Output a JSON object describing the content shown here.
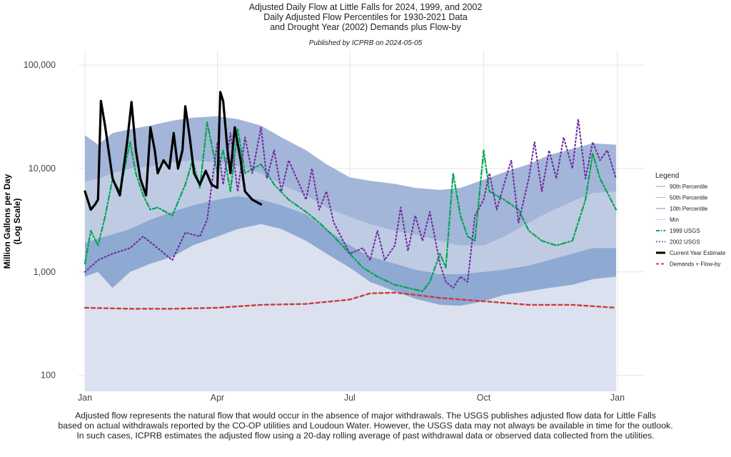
{
  "titles": {
    "line1": "Adjusted Daily Flow at Little Falls for 2024, 1999, and 2002",
    "line2": "Daily Adjusted Flow Percentiles for 1930-2021 Data",
    "line3": "and Drought Year (2002) Demands plus Flow-by",
    "subtitle": "Published by ICPRB on 2024-05-05"
  },
  "caption": {
    "line1": "Adjusted flow represents the natural flow that would occur in the absence of major withdrawals. The USGS publishes adjusted flow data for Little Falls",
    "line2": "based on actual withdrawals reported by the CO-OP utilities and Loudoun Water. However, the USGS data may not always be available in time for the outlook.",
    "line3": "In such cases, ICPRB estimates the adjusted flow using a 20-day rolling average of past withdrawal data or observed data collected from the utilities."
  },
  "colors": {
    "band_high": "#a3b5d8",
    "band_mid": "#bfcbe3",
    "band_low": "#8ea9d2",
    "band_min": "#dbe1ef",
    "series_1999": "#00a651",
    "series_2002": "#7030a0",
    "current": "#000000",
    "demands": "#cc3b3b"
  },
  "chart_data": {
    "type": "area",
    "ylabel_line1": "Million Gallons per Day",
    "ylabel_line2": "(Log Scale)",
    "xlabel": "",
    "y_scale": "log",
    "ylim": [
      70,
      140000
    ],
    "xlim": [
      "2024-01-01",
      "2024-12-31"
    ],
    "grid": true,
    "x_ticks": [
      {
        "date": "2024-01-01",
        "label": "Jan"
      },
      {
        "date": "2024-04-01",
        "label": "Apr"
      },
      {
        "date": "2024-07-01",
        "label": "Jul"
      },
      {
        "date": "2024-10-01",
        "label": "Oct"
      },
      {
        "date": "2025-01-01",
        "label": "Jan"
      }
    ],
    "y_ticks": [
      {
        "value": 100,
        "label": "100"
      },
      {
        "value": 1000,
        "label": "1,000"
      },
      {
        "value": 10000,
        "label": "10,000"
      },
      {
        "value": 100000,
        "label": "100,000"
      }
    ],
    "legend": {
      "title": "Legend",
      "position": "right",
      "items": [
        "90th Percentile",
        "50th Percentile",
        "10th Percentile",
        "Min",
        "1999 USGS",
        "2002 USGS",
        "Current Year Estimate",
        "Demands + Flow-by"
      ]
    },
    "series": [
      {
        "name": "90th Percentile",
        "style": "band",
        "x": [
          "2024-01-01",
          "2024-01-10",
          "2024-01-20",
          "2024-02-01",
          "2024-02-15",
          "2024-03-01",
          "2024-03-15",
          "2024-04-01",
          "2024-04-15",
          "2024-05-01",
          "2024-05-15",
          "2024-06-01",
          "2024-06-15",
          "2024-07-01",
          "2024-07-15",
          "2024-08-01",
          "2024-08-15",
          "2024-09-01",
          "2024-09-15",
          "2024-10-01",
          "2024-10-15",
          "2024-11-01",
          "2024-11-15",
          "2024-12-01",
          "2024-12-15",
          "2024-12-31"
        ],
        "values": [
          21000,
          17000,
          22000,
          24000,
          26000,
          29000,
          31000,
          32000,
          30000,
          26000,
          20000,
          15000,
          11000,
          8200,
          7600,
          7100,
          6500,
          6200,
          6500,
          7800,
          9200,
          11000,
          13500,
          15500,
          17500,
          17000
        ]
      },
      {
        "name": "50th Percentile",
        "style": "band",
        "x": [
          "2024-01-01",
          "2024-01-10",
          "2024-01-20",
          "2024-02-01",
          "2024-02-15",
          "2024-03-01",
          "2024-03-15",
          "2024-04-01",
          "2024-04-15",
          "2024-05-01",
          "2024-05-15",
          "2024-06-01",
          "2024-06-15",
          "2024-07-01",
          "2024-07-15",
          "2024-08-01",
          "2024-08-15",
          "2024-09-01",
          "2024-09-15",
          "2024-10-01",
          "2024-10-15",
          "2024-11-01",
          "2024-11-15",
          "2024-12-01",
          "2024-12-15",
          "2024-12-31"
        ],
        "values": [
          7500,
          8000,
          9000,
          10000,
          10500,
          11500,
          12000,
          11500,
          10500,
          9000,
          7000,
          5500,
          4200,
          3400,
          2900,
          2500,
          2300,
          2000,
          1800,
          1800,
          2200,
          3000,
          3800,
          4800,
          5800,
          6000
        ]
      },
      {
        "name": "10th Percentile",
        "style": "band",
        "x": [
          "2024-01-01",
          "2024-01-10",
          "2024-01-20",
          "2024-02-01",
          "2024-02-15",
          "2024-03-01",
          "2024-03-15",
          "2024-04-01",
          "2024-04-15",
          "2024-05-01",
          "2024-05-15",
          "2024-06-01",
          "2024-06-15",
          "2024-07-01",
          "2024-07-15",
          "2024-08-01",
          "2024-08-15",
          "2024-09-01",
          "2024-09-15",
          "2024-10-01",
          "2024-10-15",
          "2024-11-01",
          "2024-11-15",
          "2024-12-01",
          "2024-12-15",
          "2024-12-31"
        ],
        "values": [
          1900,
          2100,
          2300,
          2600,
          3200,
          3800,
          4400,
          5000,
          5400,
          5000,
          4400,
          3600,
          2600,
          1800,
          1400,
          1200,
          1050,
          950,
          950,
          1000,
          1050,
          1150,
          1300,
          1500,
          1700,
          1700
        ]
      },
      {
        "name": "Min",
        "style": "band",
        "x": [
          "2024-01-01",
          "2024-01-10",
          "2024-01-20",
          "2024-02-01",
          "2024-02-15",
          "2024-03-01",
          "2024-03-15",
          "2024-04-01",
          "2024-04-15",
          "2024-05-01",
          "2024-05-15",
          "2024-06-01",
          "2024-06-15",
          "2024-07-01",
          "2024-07-15",
          "2024-08-01",
          "2024-08-15",
          "2024-09-01",
          "2024-09-15",
          "2024-10-01",
          "2024-10-15",
          "2024-11-01",
          "2024-11-15",
          "2024-12-01",
          "2024-12-15",
          "2024-12-31"
        ],
        "values": [
          900,
          1000,
          700,
          1000,
          1200,
          1400,
          1800,
          2200,
          2600,
          2900,
          2600,
          2000,
          1500,
          1100,
          800,
          650,
          550,
          480,
          470,
          520,
          600,
          650,
          700,
          750,
          850,
          900
        ]
      },
      {
        "name": "1999 USGS",
        "style": "dashdot",
        "x": [
          "2024-01-01",
          "2024-01-05",
          "2024-01-10",
          "2024-01-15",
          "2024-01-20",
          "2024-01-25",
          "2024-02-01",
          "2024-02-05",
          "2024-02-10",
          "2024-02-15",
          "2024-02-20",
          "2024-03-01",
          "2024-03-10",
          "2024-03-15",
          "2024-03-20",
          "2024-03-25",
          "2024-04-01",
          "2024-04-05",
          "2024-04-10",
          "2024-04-15",
          "2024-04-20",
          "2024-05-01",
          "2024-05-10",
          "2024-05-20",
          "2024-06-01",
          "2024-06-10",
          "2024-06-20",
          "2024-07-01",
          "2024-07-10",
          "2024-07-20",
          "2024-08-01",
          "2024-08-10",
          "2024-08-20",
          "2024-08-25",
          "2024-09-01",
          "2024-09-05",
          "2024-09-10",
          "2024-09-15",
          "2024-09-20",
          "2024-09-25",
          "2024-10-01",
          "2024-10-05",
          "2024-10-15",
          "2024-10-25",
          "2024-11-01",
          "2024-11-10",
          "2024-11-20",
          "2024-12-01",
          "2024-12-10",
          "2024-12-15",
          "2024-12-20",
          "2024-12-31"
        ],
        "values": [
          1200,
          2500,
          1800,
          3500,
          8000,
          6000,
          18000,
          9000,
          5500,
          4000,
          4200,
          3500,
          7000,
          12000,
          6500,
          28000,
          9000,
          15000,
          6000,
          24000,
          9000,
          11000,
          7000,
          5000,
          3800,
          3000,
          2200,
          1500,
          1100,
          900,
          750,
          700,
          650,
          800,
          1500,
          1100,
          9000,
          3500,
          2200,
          2000,
          15000,
          6000,
          5000,
          4000,
          2500,
          2000,
          1800,
          2000,
          5000,
          14000,
          8000,
          4000
        ]
      },
      {
        "name": "2002 USGS",
        "style": "dotted",
        "x": [
          "2024-01-01",
          "2024-01-10",
          "2024-01-20",
          "2024-02-01",
          "2024-02-10",
          "2024-02-20",
          "2024-03-01",
          "2024-03-10",
          "2024-03-20",
          "2024-03-25",
          "2024-04-01",
          "2024-04-05",
          "2024-04-10",
          "2024-04-15",
          "2024-04-20",
          "2024-04-25",
          "2024-05-01",
          "2024-05-05",
          "2024-05-10",
          "2024-05-15",
          "2024-05-20",
          "2024-06-01",
          "2024-06-05",
          "2024-06-10",
          "2024-06-15",
          "2024-06-20",
          "2024-07-01",
          "2024-07-10",
          "2024-07-15",
          "2024-07-20",
          "2024-07-25",
          "2024-08-01",
          "2024-08-05",
          "2024-08-10",
          "2024-08-15",
          "2024-08-20",
          "2024-08-25",
          "2024-09-01",
          "2024-09-05",
          "2024-09-10",
          "2024-09-15",
          "2024-09-20",
          "2024-09-25",
          "2024-10-01",
          "2024-10-05",
          "2024-10-10",
          "2024-10-15",
          "2024-10-20",
          "2024-10-25",
          "2024-11-01",
          "2024-11-05",
          "2024-11-10",
          "2024-11-15",
          "2024-11-20",
          "2024-11-25",
          "2024-12-01",
          "2024-12-05",
          "2024-12-10",
          "2024-12-15",
          "2024-12-20",
          "2024-12-25",
          "2024-12-31"
        ],
        "values": [
          1000,
          1300,
          1500,
          1700,
          2200,
          1700,
          1300,
          2400,
          2200,
          3200,
          18000,
          7000,
          22000,
          6000,
          20000,
          9000,
          25000,
          8000,
          15000,
          6000,
          12000,
          5000,
          10000,
          4000,
          6000,
          3000,
          1500,
          1700,
          1300,
          2500,
          1300,
          1800,
          4200,
          1600,
          3500,
          2000,
          3800,
          1200,
          800,
          700,
          900,
          800,
          3500,
          5000,
          9000,
          4000,
          7000,
          12000,
          3000,
          8000,
          18000,
          6000,
          15000,
          8000,
          20000,
          10000,
          30000,
          8000,
          18000,
          12000,
          15000,
          8000
        ]
      },
      {
        "name": "Current Year Estimate",
        "style": "solid",
        "x": [
          "2024-01-01",
          "2024-01-05",
          "2024-01-08",
          "2024-01-10",
          "2024-01-12",
          "2024-01-15",
          "2024-01-20",
          "2024-01-25",
          "2024-01-30",
          "2024-02-02",
          "2024-02-05",
          "2024-02-08",
          "2024-02-12",
          "2024-02-15",
          "2024-02-18",
          "2024-02-20",
          "2024-02-24",
          "2024-02-28",
          "2024-03-02",
          "2024-03-05",
          "2024-03-08",
          "2024-03-10",
          "2024-03-13",
          "2024-03-16",
          "2024-03-20",
          "2024-03-24",
          "2024-03-28",
          "2024-04-01",
          "2024-04-03",
          "2024-04-05",
          "2024-04-08",
          "2024-04-10",
          "2024-04-13",
          "2024-04-17",
          "2024-04-20",
          "2024-04-25",
          "2024-05-01"
        ],
        "values": [
          6000,
          4000,
          4500,
          5000,
          45000,
          25000,
          8000,
          5500,
          18000,
          44000,
          15000,
          8000,
          5500,
          25000,
          15000,
          9000,
          12000,
          10000,
          22000,
          10000,
          15000,
          40000,
          20000,
          9000,
          7000,
          9500,
          7000,
          6500,
          55000,
          45000,
          15000,
          9000,
          25000,
          12000,
          6000,
          5000,
          4500
        ]
      },
      {
        "name": "Demands + Flow-by",
        "style": "dashed",
        "x": [
          "2024-01-01",
          "2024-02-01",
          "2024-03-01",
          "2024-04-01",
          "2024-05-01",
          "2024-06-01",
          "2024-07-01",
          "2024-07-15",
          "2024-08-01",
          "2024-08-15",
          "2024-09-01",
          "2024-10-01",
          "2024-11-01",
          "2024-12-01",
          "2024-12-31"
        ],
        "values": [
          450,
          440,
          440,
          450,
          480,
          490,
          540,
          620,
          630,
          600,
          560,
          520,
          480,
          480,
          450
        ]
      }
    ]
  }
}
